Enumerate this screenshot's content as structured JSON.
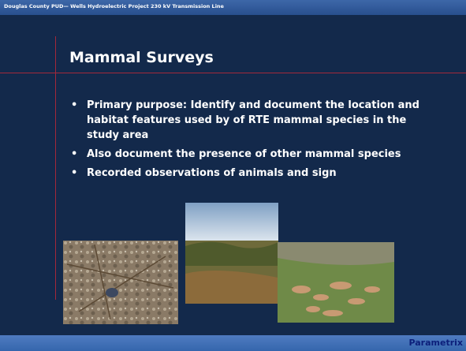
{
  "header": "Douglas County PUD— Wells Hydroelectric Project 230 kV Transmission Line",
  "title": "Mammal Surveys",
  "bullets": [
    "Primary purpose:  Identify and document the location and habitat features used by of RTE mammal species in the study area",
    "Also document the presence of other mammal species",
    "Recorded observations of animals and sign"
  ],
  "footer": "Parametrix"
}
